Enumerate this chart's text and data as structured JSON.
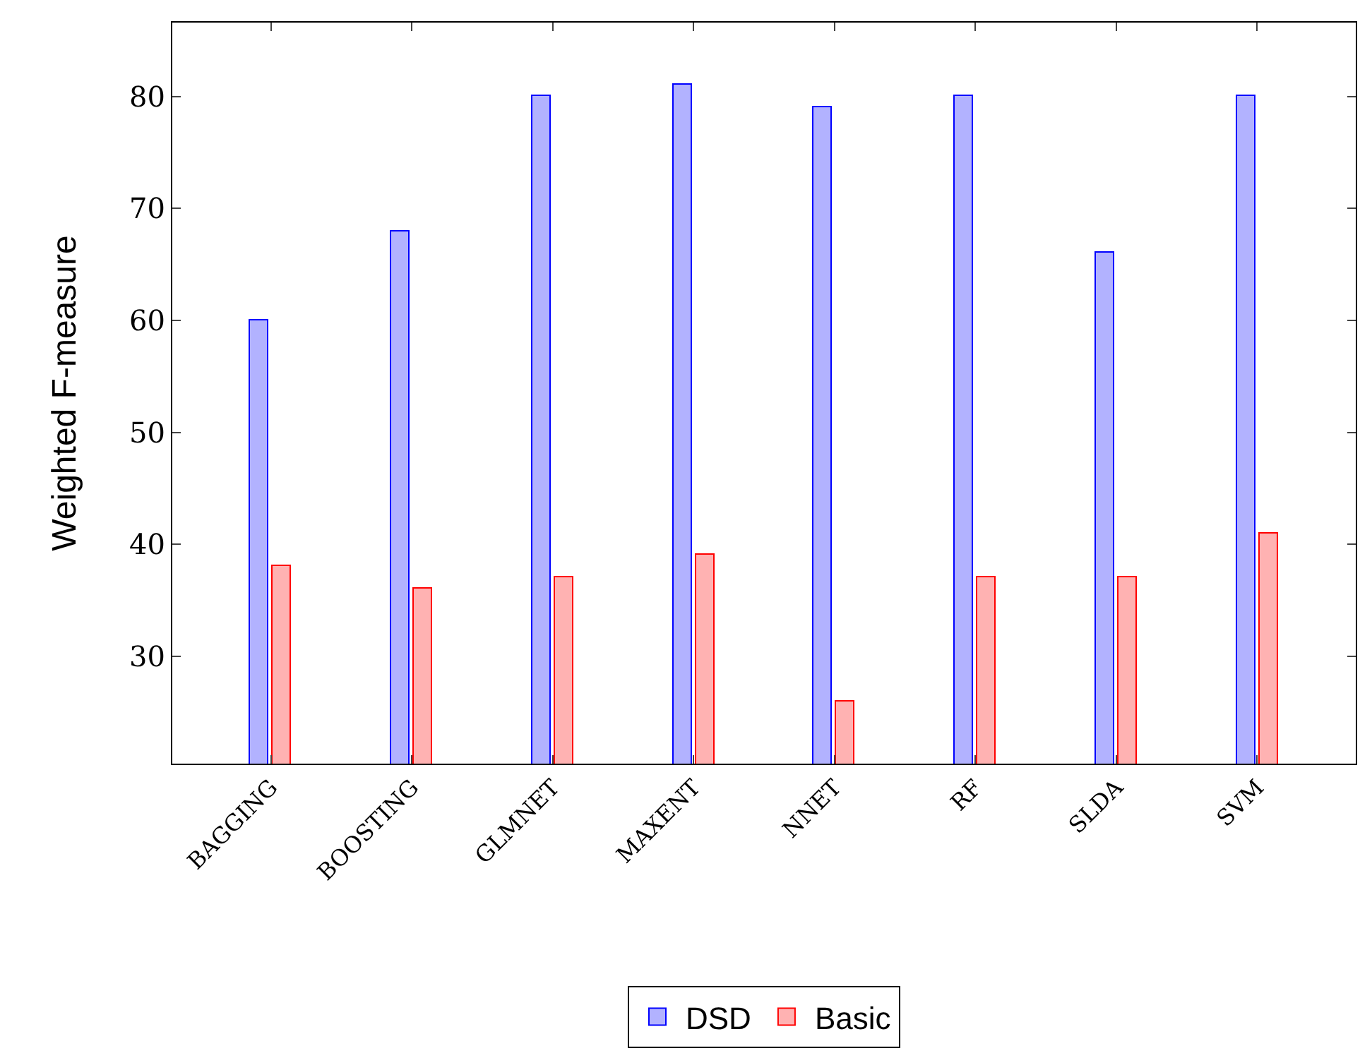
{
  "chart_data": {
    "type": "bar",
    "ylabel": "Weighted F-measure",
    "categories": [
      "BAGGING",
      "BOOSTING",
      "GLMNET",
      "MAXENT",
      "NNET",
      "RF",
      "SLDA",
      "SVM"
    ],
    "series": [
      {
        "name": "DSD",
        "color": "#0000ff",
        "values": [
          60,
          68,
          80,
          81,
          79,
          80,
          66,
          80
        ]
      },
      {
        "name": "Basic",
        "color": "#ff0000",
        "values": [
          38,
          36,
          37,
          39,
          26,
          37,
          37,
          41
        ]
      }
    ],
    "ylim": [
      20.4,
      86.6
    ],
    "yticks": [
      30,
      40,
      50,
      60,
      70,
      80
    ],
    "legend": "bottom"
  }
}
